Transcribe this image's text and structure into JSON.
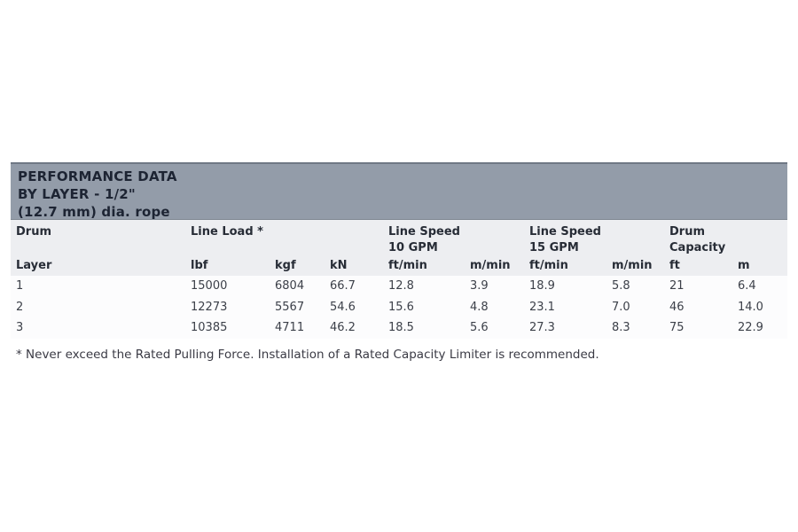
{
  "colors": {
    "band_bg": "#939CA9",
    "band_border_top": "#6F7885",
    "band_border_bottom": "#7E8691",
    "band_text": "#1D2433",
    "header_bg": "#EDEEF1",
    "header_text": "#272C36",
    "data_text": "#3C4049",
    "footnote_text": "#3A3A44"
  },
  "performance_table": {
    "title_lines": [
      "PERFORMANCE DATA",
      "BY LAYER - 1/2\"",
      "(12.7 mm) dia. rope"
    ],
    "group_headers": [
      {
        "line1": "Drum",
        "line2": ""
      },
      {
        "line1": "Line Load *",
        "line2": ""
      },
      {
        "line1": "Line Speed",
        "line2": "10 GPM"
      },
      {
        "line1": "Line Speed",
        "line2": "15 GPM"
      },
      {
        "line1": "Drum",
        "line2": "Capacity"
      }
    ],
    "unit_headers": [
      "Layer",
      "lbf",
      "kgf",
      "kN",
      "ft/min",
      "m/min",
      "ft/min",
      "m/min",
      "ft",
      "m"
    ],
    "rows": [
      [
        "1",
        "15000",
        "6804",
        "66.7",
        "12.8",
        "3.9",
        "18.9",
        "5.8",
        "21",
        "6.4"
      ],
      [
        "2",
        "12273",
        "5567",
        "54.6",
        "15.6",
        "4.8",
        "23.1",
        "7.0",
        "46",
        "14.0"
      ],
      [
        "3",
        "10385",
        "4711",
        "46.2",
        "18.5",
        "5.6",
        "27.3",
        "8.3",
        "75",
        "22.9"
      ]
    ],
    "footnote": "* Never exceed the Rated Pulling Force. Installation of a Rated Capacity Limiter is recommended."
  }
}
